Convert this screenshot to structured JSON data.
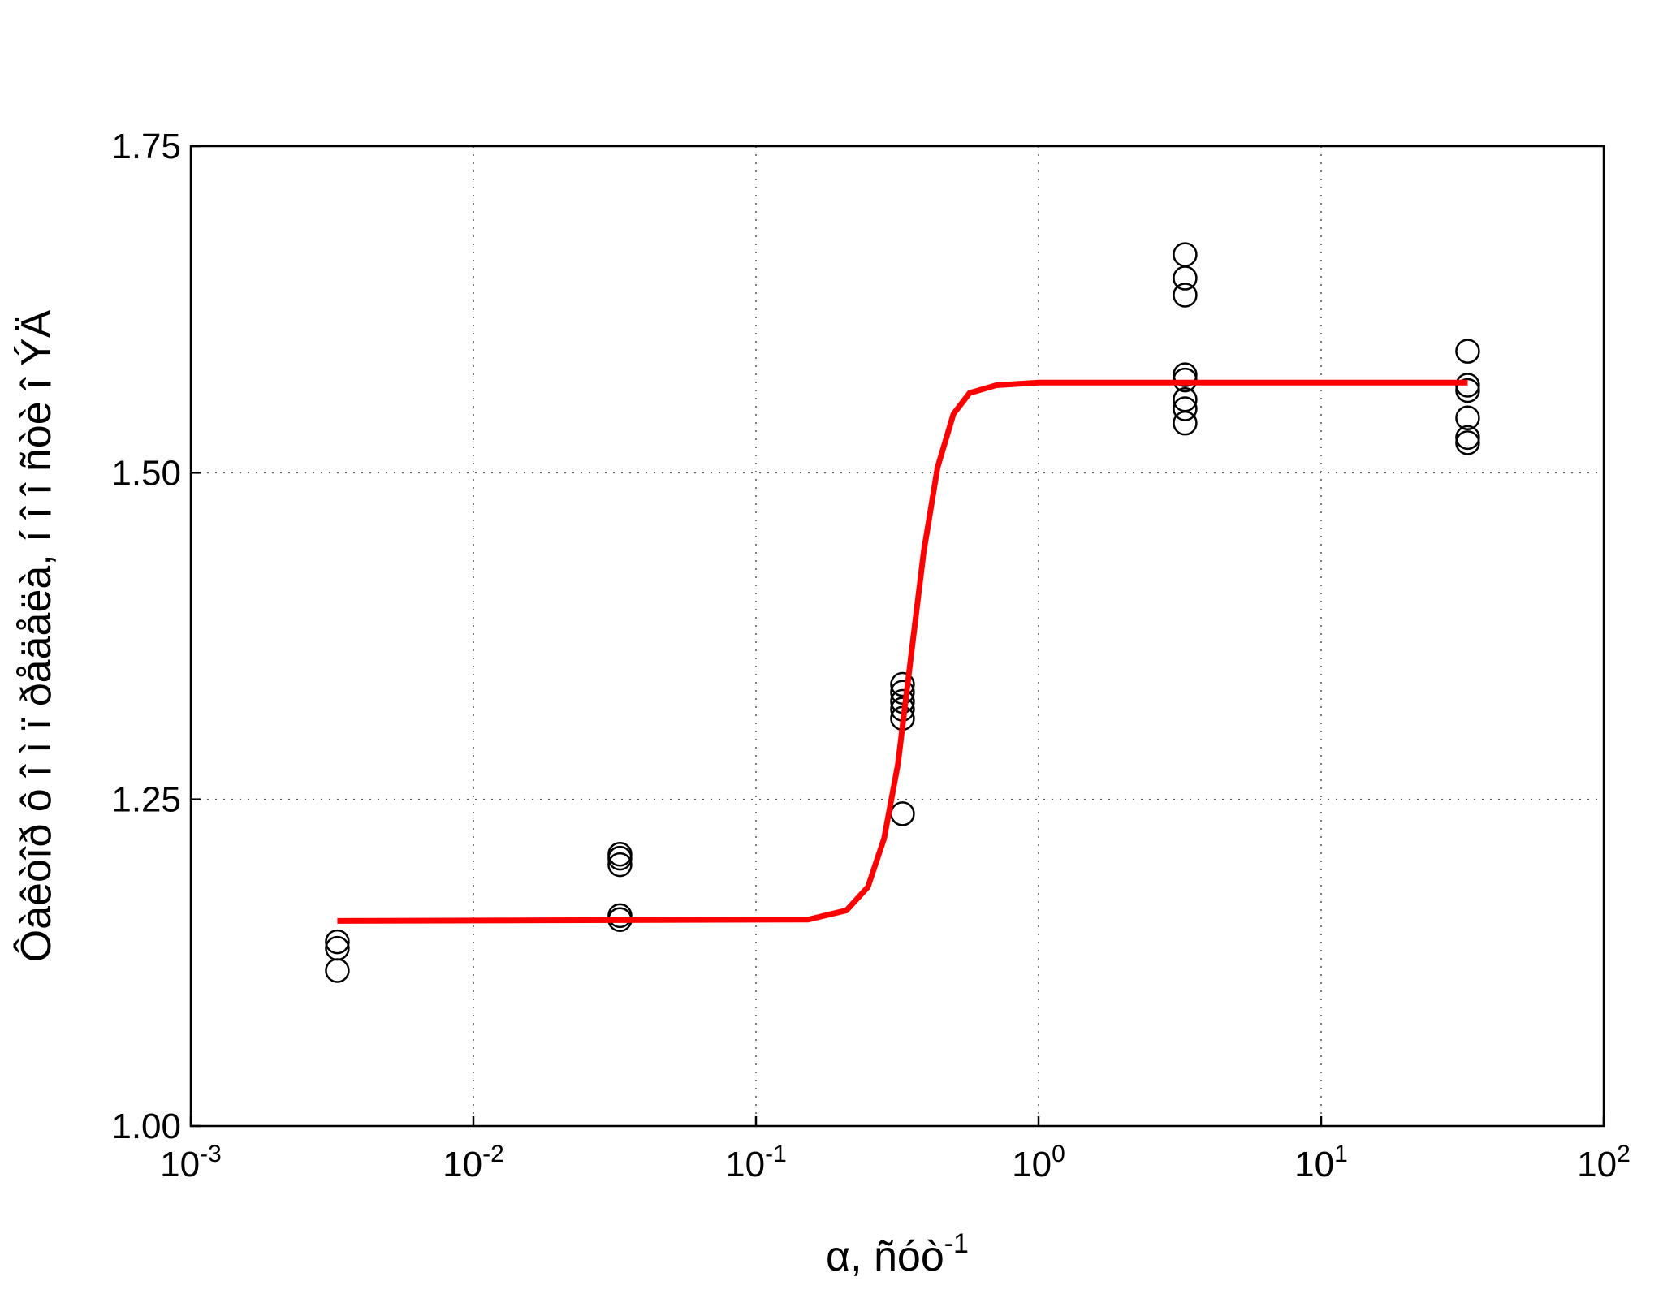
{
  "chart_data": {
    "type": "scatter",
    "xlabel": "α, ñóò",
    "xlabel_sup": "-1",
    "ylabel": "Ôàêòîð ô î ì ï ðåäåëà, í î î ñòè î ÝÄ",
    "xscale": "log",
    "grid": true,
    "xlim": [
      0.001,
      100
    ],
    "ylim": [
      1.0,
      1.75
    ],
    "xticks": [
      {
        "value": 0.001,
        "label": "10",
        "exponent": "-3"
      },
      {
        "value": 0.01,
        "label": "10",
        "exponent": "-2"
      },
      {
        "value": 0.1,
        "label": "10",
        "exponent": "-1"
      },
      {
        "value": 1,
        "label": "10",
        "exponent": "0"
      },
      {
        "value": 10,
        "label": "10",
        "exponent": "1"
      },
      {
        "value": 100,
        "label": "10",
        "exponent": "2"
      }
    ],
    "yticks": [
      {
        "value": 1.0,
        "label": "1.00"
      },
      1.25,
      {
        "value": 1.5,
        "label": "1.50"
      },
      1.75
    ],
    "series": [
      {
        "type": "scatter",
        "color": "#000000",
        "x": [
          0.0033,
          0.0033,
          0.0033,
          0.033,
          0.033,
          0.033,
          0.033,
          0.033,
          0.33,
          0.33,
          0.33,
          0.33,
          0.33,
          0.33,
          3.3,
          3.3,
          3.3,
          3.3,
          3.3,
          3.3,
          3.3,
          3.3,
          33,
          33,
          33,
          33,
          33,
          33
        ],
        "values": [
          1.141,
          1.136,
          1.119,
          1.208,
          1.205,
          1.2,
          1.161,
          1.158,
          1.338,
          1.332,
          1.325,
          1.319,
          1.312,
          1.239,
          1.667,
          1.649,
          1.636,
          1.575,
          1.571,
          1.556,
          1.549,
          1.538,
          1.593,
          1.567,
          1.563,
          1.542,
          1.527,
          1.523
        ]
      },
      {
        "type": "line",
        "color": "#ff0000",
        "x": [
          0.0033,
          0.153,
          0.209,
          0.249,
          0.284,
          0.318,
          0.353,
          0.392,
          0.439,
          0.5,
          0.57,
          0.709,
          1.0,
          33
        ],
        "values": [
          1.157,
          1.158,
          1.165,
          1.183,
          1.22,
          1.277,
          1.358,
          1.439,
          1.504,
          1.545,
          1.561,
          1.567,
          1.569,
          1.569
        ]
      }
    ]
  }
}
